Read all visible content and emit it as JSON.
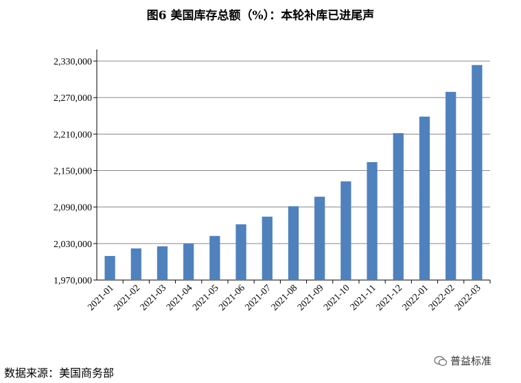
{
  "chart_data": {
    "type": "bar",
    "title": "图6  美国库存总额（%）：本轮补库已进尾声",
    "xlabel": "",
    "ylabel": "",
    "categories": [
      "2021-01",
      "2021-02",
      "2021-03",
      "2021-04",
      "2021-05",
      "2021-06",
      "2021-07",
      "2021-08",
      "2021-09",
      "2021-10",
      "2021-11",
      "2021-12",
      "2022-01",
      "2022-02",
      "2022-03"
    ],
    "values": [
      2009600,
      2022000,
      2025500,
      2030300,
      2042500,
      2061700,
      2074200,
      2091400,
      2107000,
      2132200,
      2163900,
      2211500,
      2238700,
      2279400,
      2323500
    ],
    "ylim": [
      1970000,
      2330000
    ],
    "yticks": [
      1970000,
      2030000,
      2090000,
      2150000,
      2210000,
      2270000,
      2330000
    ],
    "ytick_labels": [
      "1,970,000",
      "2,030,000",
      "2,090,000",
      "2,150,000",
      "2,210,000",
      "2,270,000",
      "2,330,000"
    ],
    "grid": true,
    "bar_color": "#4F81BD"
  },
  "source": "数据来源：美国商务部",
  "watermark": "普益标准"
}
